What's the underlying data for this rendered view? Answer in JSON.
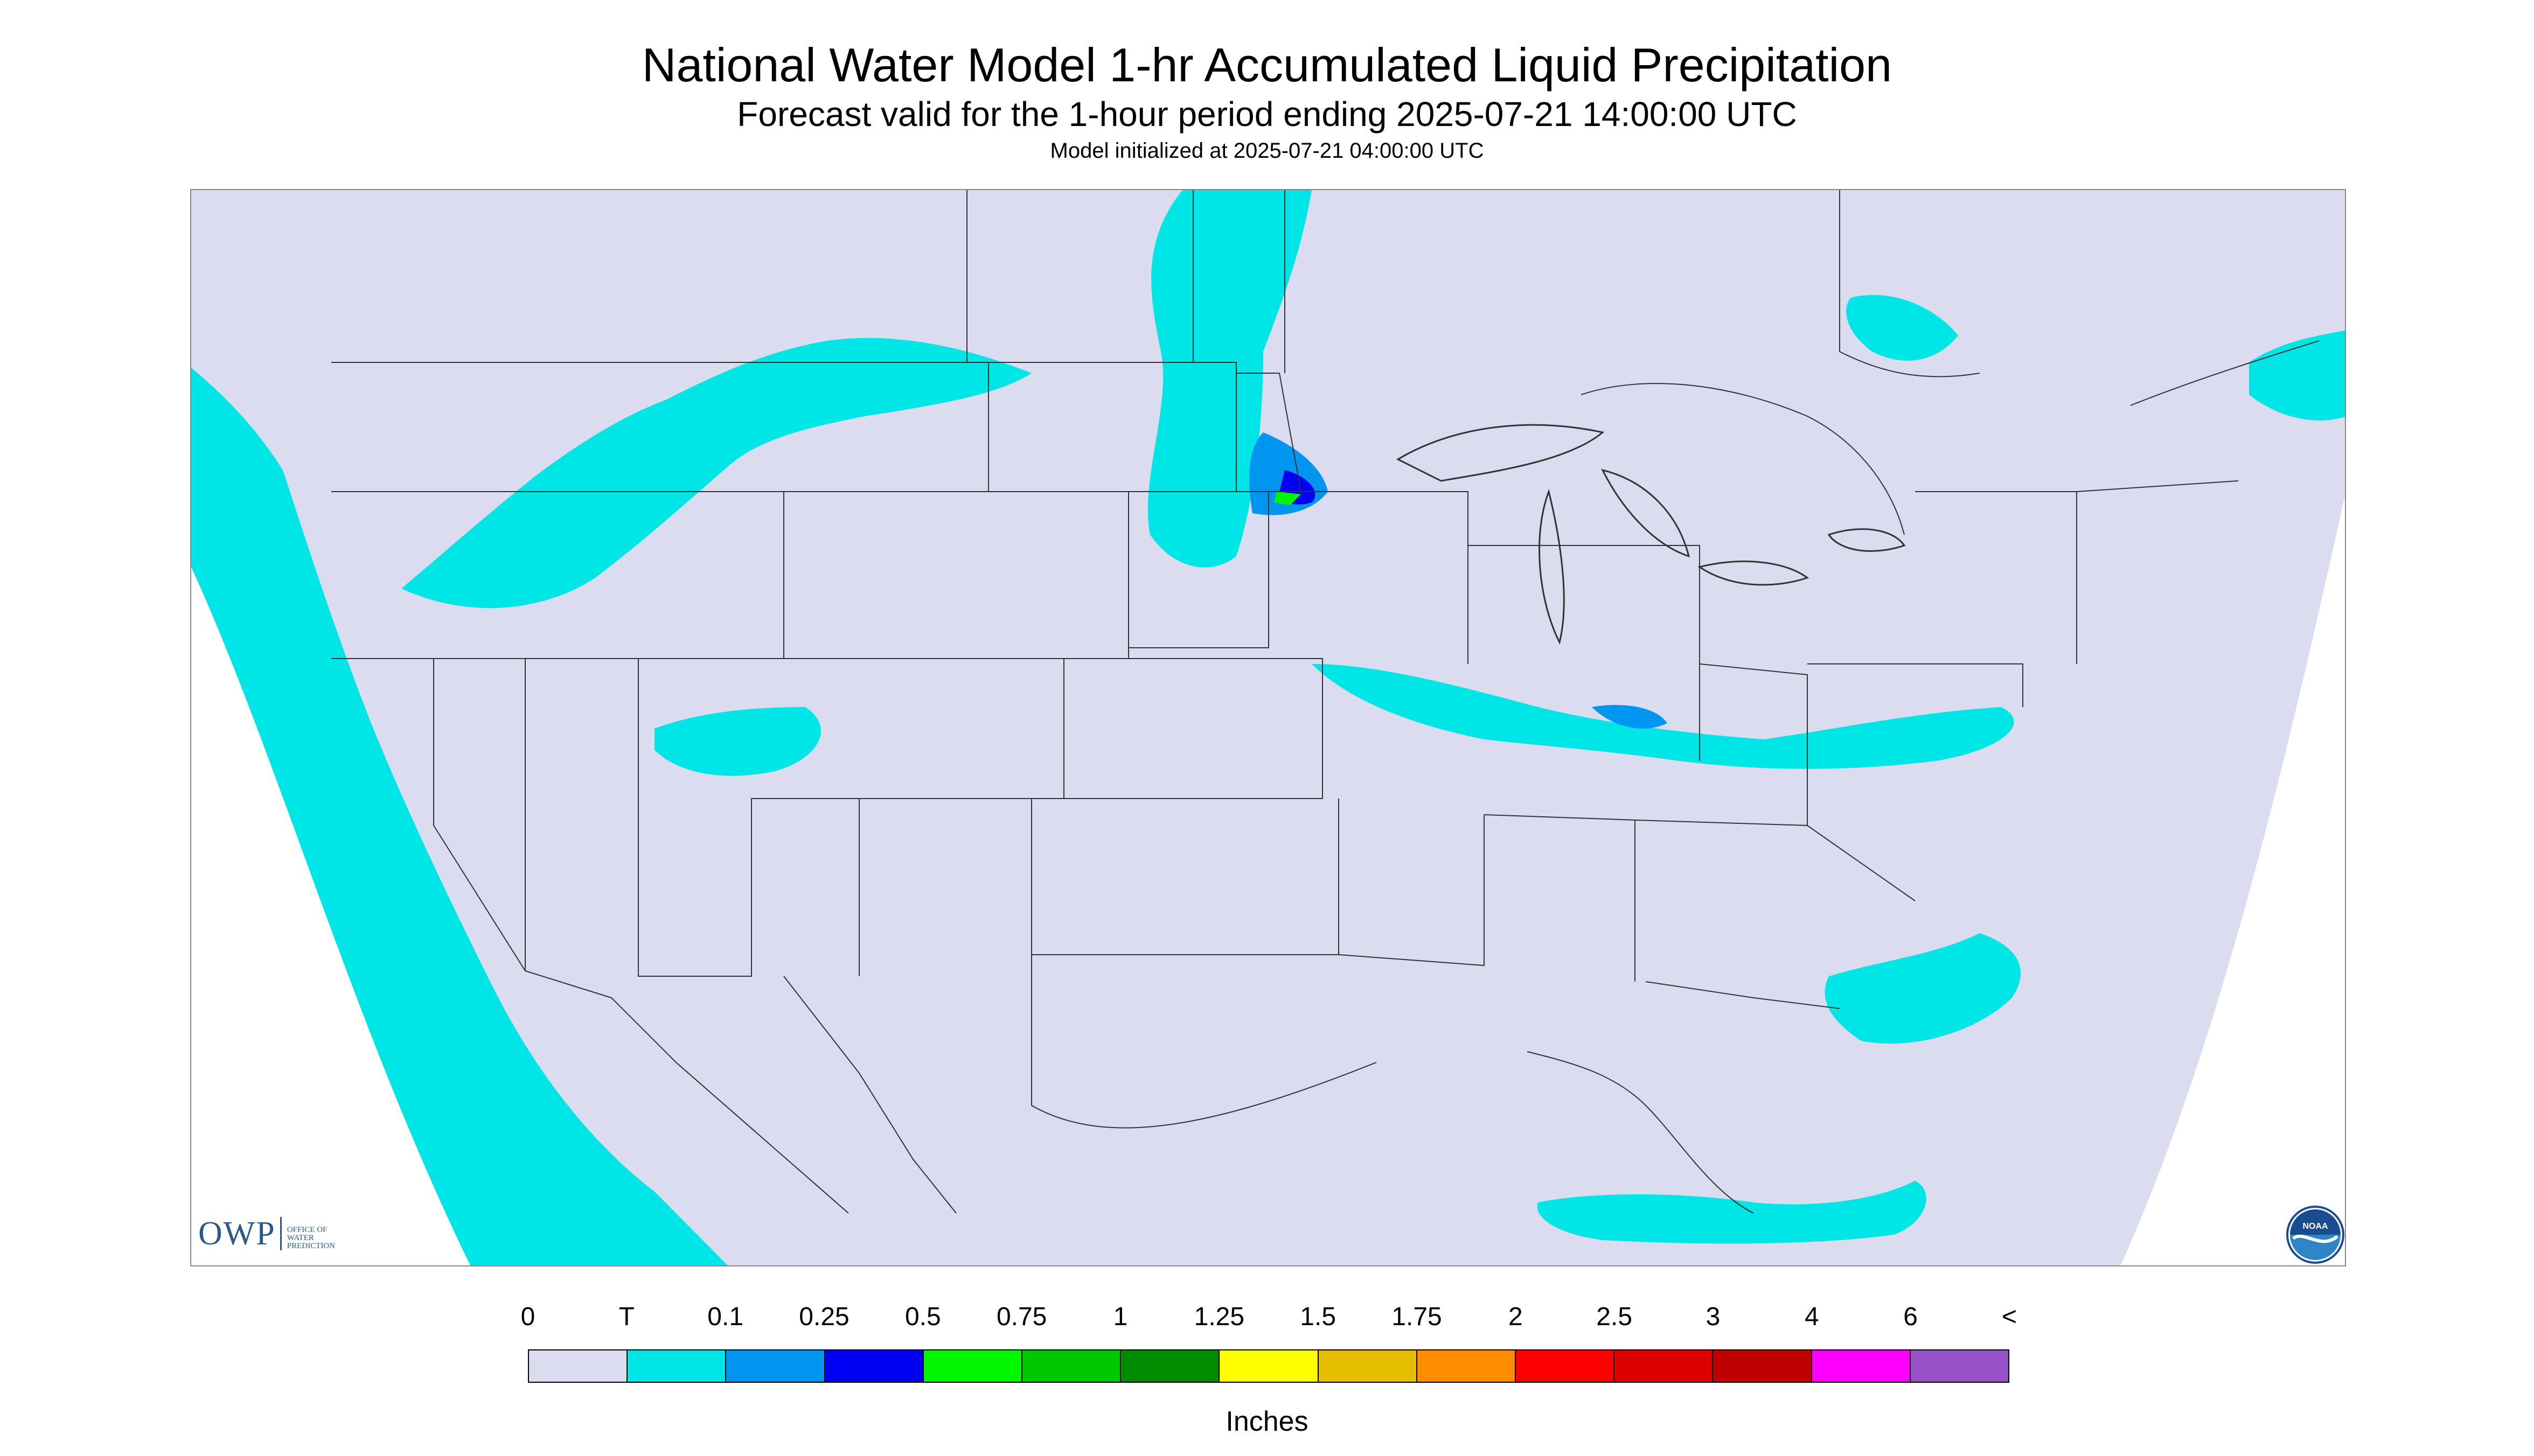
{
  "title": "National Water Model 1-hr Accumulated Liquid Precipitation",
  "subtitle": "Forecast valid for the 1-hour period ending 2025-07-21 14:00:00 UTC",
  "init_line": "Model initialized at 2025-07-21 04:00:00 UTC",
  "logo": {
    "owp": "OWP",
    "owp_sub_1": "Office of",
    "owp_sub_2": "Water",
    "owp_sub_3": "Prediction",
    "noaa": "NOAA"
  },
  "legend": {
    "labels": [
      "0",
      "T",
      "0.1",
      "0.25",
      "0.5",
      "0.75",
      "1",
      "1.25",
      "1.5",
      "1.75",
      "2",
      "2.5",
      "3",
      "4",
      "6",
      "<"
    ],
    "colors": [
      "#dcdcf0",
      "#00e6e6",
      "#0096f0",
      "#0000f5",
      "#00f500",
      "#00c800",
      "#008c00",
      "#ffff00",
      "#e6be00",
      "#ff8c00",
      "#ff0000",
      "#dc0000",
      "#be0000",
      "#ff00ff",
      "#9650c8"
    ],
    "units": "Inches"
  },
  "map_colors": {
    "no_data": "#ffffff",
    "zero": "#dcdcf0",
    "trace": "#00e6e6",
    "light": "#0096f0",
    "medium": "#0000f5",
    "heavy": "#00f500",
    "boundary": "#333333"
  }
}
